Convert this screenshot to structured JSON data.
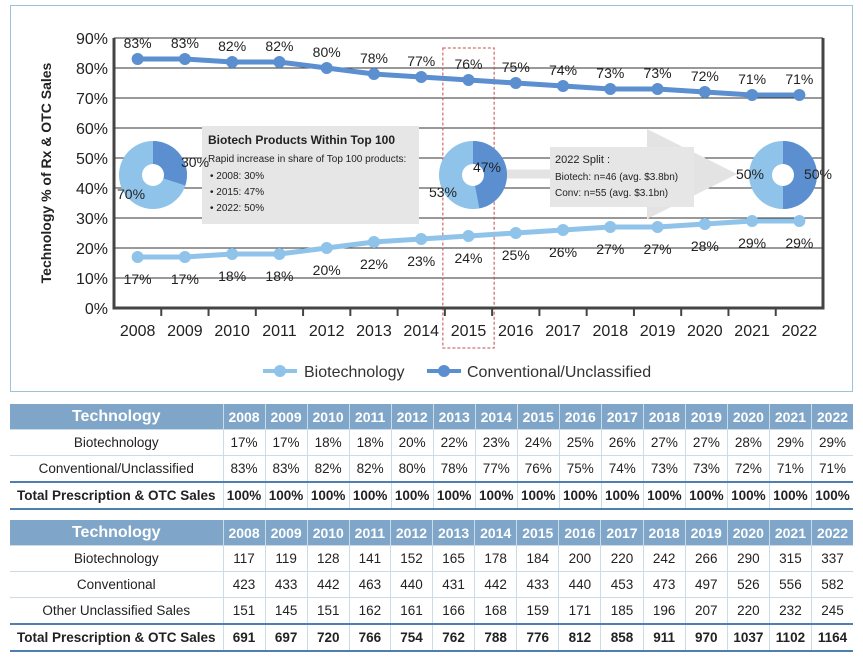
{
  "chart_data": {
    "type": "line",
    "ylabel": "Technology % of Rx & OTC Sales",
    "x": [
      "2008",
      "2009",
      "2010",
      "2011",
      "2012",
      "2013",
      "2014",
      "2015",
      "2016",
      "2017",
      "2018",
      "2019",
      "2020",
      "2021",
      "2022"
    ],
    "ylim": [
      0,
      90
    ],
    "yticks": [
      "0%",
      "10%",
      "20%",
      "30%",
      "40%",
      "50%",
      "60%",
      "70%",
      "80%",
      "90%"
    ],
    "series": [
      {
        "name": "Biotechnology",
        "color": "#8fc3ea",
        "values": [
          17,
          17,
          18,
          18,
          20,
          22,
          23,
          24,
          25,
          26,
          27,
          27,
          28,
          29,
          29
        ],
        "labels": [
          "17%",
          "17%",
          "18%",
          "18%",
          "20%",
          "22%",
          "23%",
          "24%",
          "25%",
          "26%",
          "27%",
          "27%",
          "28%",
          "29%",
          "29%"
        ]
      },
      {
        "name": "Conventional/Unclassified",
        "color": "#5b8fcf",
        "values": [
          83,
          83,
          82,
          82,
          80,
          78,
          77,
          76,
          75,
          74,
          73,
          73,
          72,
          71,
          71
        ],
        "labels": [
          "83%",
          "83%",
          "82%",
          "82%",
          "80%",
          "78%",
          "77%",
          "76%",
          "75%",
          "74%",
          "73%",
          "73%",
          "72%",
          "71%",
          "71%"
        ]
      }
    ],
    "highlight_year": "2015",
    "pies": [
      {
        "year": "2008",
        "biotech": 30,
        "conv": 70,
        "biotech_label": "30%",
        "conv_label": "70%"
      },
      {
        "year": "2015",
        "biotech": 47,
        "conv": 53,
        "biotech_label": "47%",
        "conv_label": "53%"
      },
      {
        "year": "2022",
        "biotech": 50,
        "conv": 50,
        "biotech_label": "50%",
        "conv_label": "50%"
      }
    ],
    "annotations": {
      "top100": {
        "title": "Biotech Products Within Top 100",
        "line1": "Rapid increase in share of Top 100 products:",
        "bullets": [
          "• 2008: 30%",
          "• 2015: 47%",
          "• 2022: 50%"
        ]
      },
      "split": {
        "title": "2022 Split :",
        "line1": "Biotech: n=46 (avg. $3.8bn)",
        "line2": "Conv: n=55 (avg. $3.1bn)"
      }
    }
  },
  "colors": {
    "biotech": "#8fc3ea",
    "conventional": "#5b8fcf",
    "table_header": "#7fa6c9",
    "axis": "#444444"
  },
  "table1": {
    "header_label": "Technology",
    "years": [
      "2008",
      "2009",
      "2010",
      "2011",
      "2012",
      "2013",
      "2014",
      "2015",
      "2016",
      "2017",
      "2018",
      "2019",
      "2020",
      "2021",
      "2022"
    ],
    "rows": [
      {
        "label": "Biotechnology",
        "values": [
          "17%",
          "17%",
          "18%",
          "18%",
          "20%",
          "22%",
          "23%",
          "24%",
          "25%",
          "26%",
          "27%",
          "27%",
          "28%",
          "29%",
          "29%"
        ]
      },
      {
        "label": "Conventional/Unclassified",
        "values": [
          "83%",
          "83%",
          "82%",
          "82%",
          "80%",
          "78%",
          "77%",
          "76%",
          "75%",
          "74%",
          "73%",
          "73%",
          "72%",
          "71%",
          "71%"
        ]
      }
    ],
    "total": {
      "label": "Total Prescription & OTC Sales",
      "values": [
        "100%",
        "100%",
        "100%",
        "100%",
        "100%",
        "100%",
        "100%",
        "100%",
        "100%",
        "100%",
        "100%",
        "100%",
        "100%",
        "100%",
        "100%"
      ]
    }
  },
  "table2": {
    "header_label": "Technology",
    "years": [
      "2008",
      "2009",
      "2010",
      "2011",
      "2012",
      "2013",
      "2014",
      "2015",
      "2016",
      "2017",
      "2018",
      "2019",
      "2020",
      "2021",
      "2022"
    ],
    "rows": [
      {
        "label": "Biotechnology",
        "values": [
          "117",
          "119",
          "128",
          "141",
          "152",
          "165",
          "178",
          "184",
          "200",
          "220",
          "242",
          "266",
          "290",
          "315",
          "337"
        ]
      },
      {
        "label": "Conventional",
        "values": [
          "423",
          "433",
          "442",
          "463",
          "440",
          "431",
          "442",
          "433",
          "440",
          "453",
          "473",
          "497",
          "526",
          "556",
          "582"
        ]
      },
      {
        "label": "Other Unclassified Sales",
        "values": [
          "151",
          "145",
          "151",
          "162",
          "161",
          "166",
          "168",
          "159",
          "171",
          "185",
          "196",
          "207",
          "220",
          "232",
          "245"
        ]
      }
    ],
    "total": {
      "label": "Total Prescription & OTC Sales",
      "values": [
        "691",
        "697",
        "720",
        "766",
        "754",
        "762",
        "788",
        "776",
        "812",
        "858",
        "911",
        "970",
        "1037",
        "1102",
        "1164"
      ]
    }
  }
}
